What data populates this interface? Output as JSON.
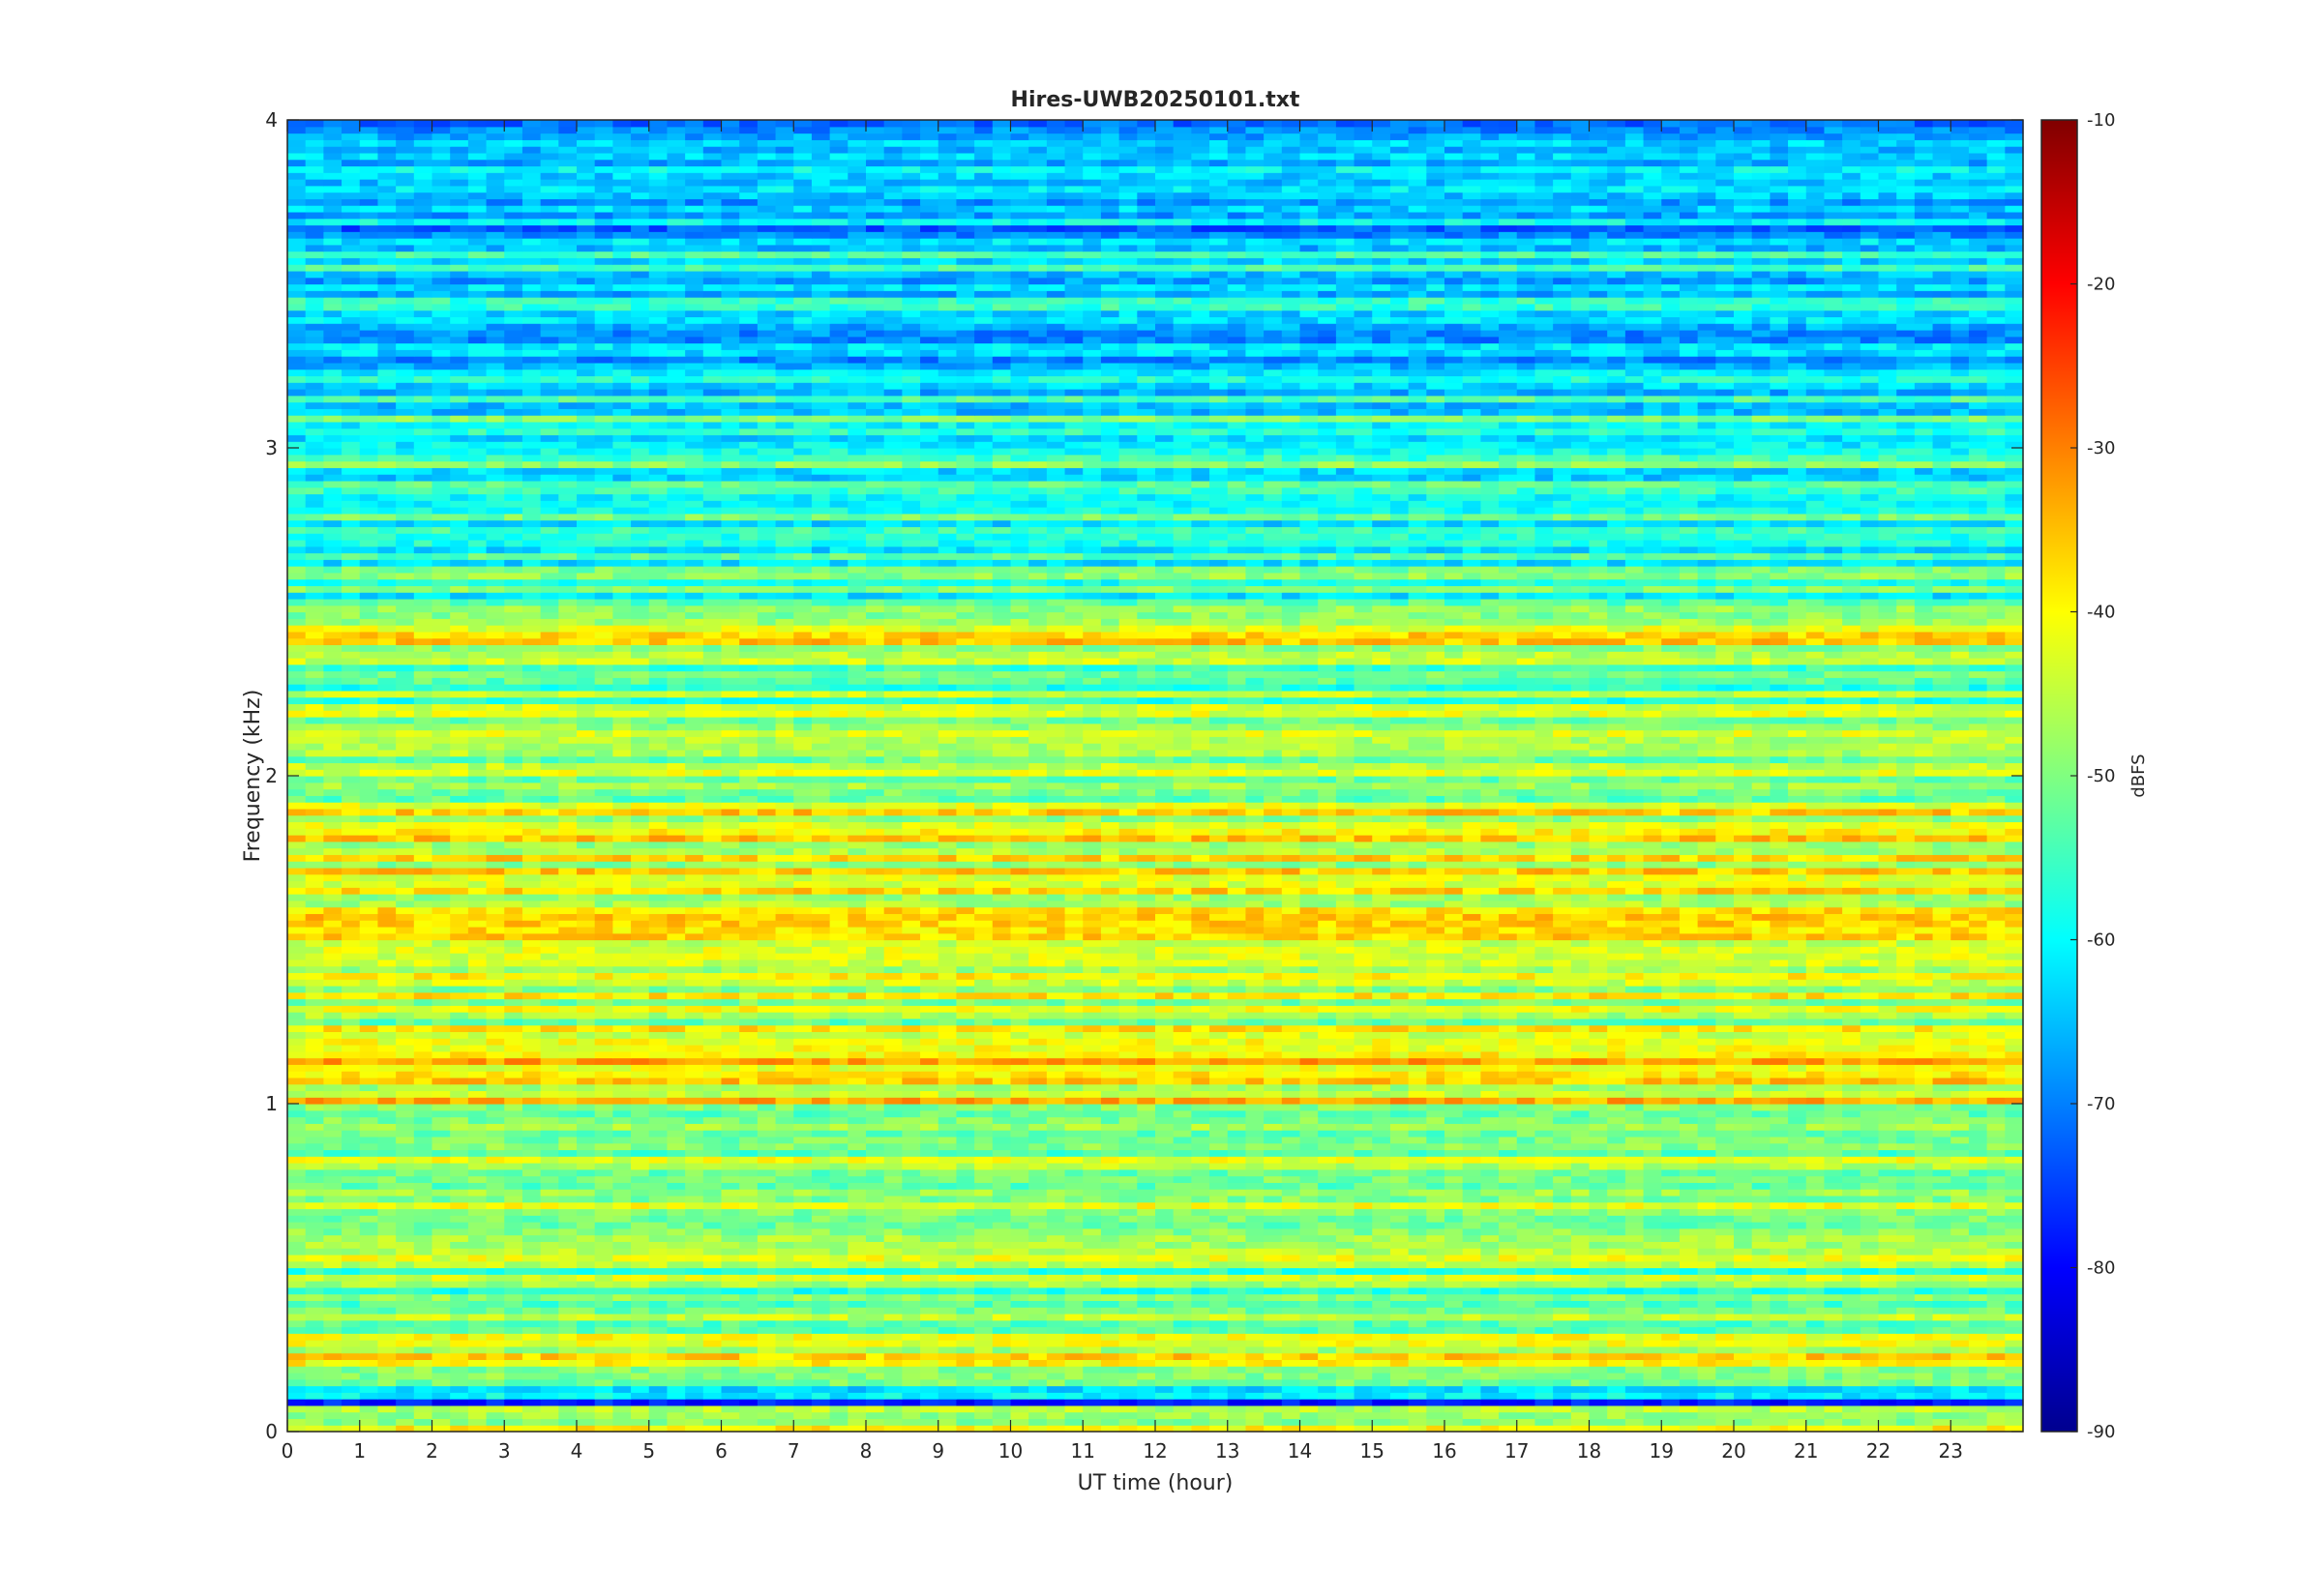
{
  "chart_data": {
    "type": "heatmap",
    "title": "Hires-UWB20250101.txt",
    "xlabel": "UT time (hour)",
    "ylabel": "Frequency (kHz)",
    "xlim": [
      0,
      24
    ],
    "ylim": [
      0,
      4
    ],
    "x_ticks": [
      "0",
      "1",
      "2",
      "3",
      "4",
      "5",
      "6",
      "7",
      "8",
      "9",
      "10",
      "11",
      "12",
      "13",
      "14",
      "15",
      "16",
      "17",
      "18",
      "19",
      "20",
      "21",
      "22",
      "23"
    ],
    "y_ticks": [
      "0",
      "1",
      "2",
      "3",
      "4"
    ],
    "colorbar": {
      "label": "dBFS",
      "clim": [
        -90,
        -10
      ],
      "ticks": [
        "-90",
        "-80",
        "-70",
        "-60",
        "-50",
        "-40",
        "-30",
        "-20",
        "-10"
      ],
      "colormap": [
        "#00008f",
        "#0000ff",
        "#0080ff",
        "#00ffff",
        "#80ff80",
        "#ffff00",
        "#ff8000",
        "#ff0000",
        "#800000"
      ]
    },
    "grid": false,
    "bands": [
      {
        "f_min": 0.0,
        "f_max": 0.08,
        "level_dbfs": -42
      },
      {
        "f_min": 0.08,
        "f_max": 0.1,
        "level_dbfs": -72
      },
      {
        "f_min": 0.1,
        "f_max": 0.2,
        "level_dbfs": -55
      },
      {
        "f_min": 0.2,
        "f_max": 0.3,
        "level_dbfs": -44
      },
      {
        "f_min": 0.3,
        "f_max": 0.6,
        "level_dbfs": -50
      },
      {
        "f_min": 0.6,
        "f_max": 1.0,
        "level_dbfs": -46
      },
      {
        "f_min": 1.0,
        "f_max": 1.1,
        "level_dbfs": -40
      },
      {
        "f_min": 1.1,
        "f_max": 1.2,
        "level_dbfs": -38
      },
      {
        "f_min": 1.2,
        "f_max": 1.5,
        "level_dbfs": -45
      },
      {
        "f_min": 1.5,
        "f_max": 1.7,
        "level_dbfs": -40
      },
      {
        "f_min": 1.7,
        "f_max": 1.9,
        "level_dbfs": -42
      },
      {
        "f_min": 1.9,
        "f_max": 2.5,
        "level_dbfs": -50
      },
      {
        "f_min": 2.4,
        "f_max": 2.5,
        "level_dbfs": -42
      },
      {
        "f_min": 2.5,
        "f_max": 3.1,
        "level_dbfs": -56
      },
      {
        "f_min": 3.1,
        "f_max": 3.6,
        "level_dbfs": -62
      },
      {
        "f_min": 3.6,
        "f_max": 4.0,
        "level_dbfs": -66
      }
    ],
    "colors": {
      "background": "#ffffff",
      "axis": "#262626"
    }
  }
}
